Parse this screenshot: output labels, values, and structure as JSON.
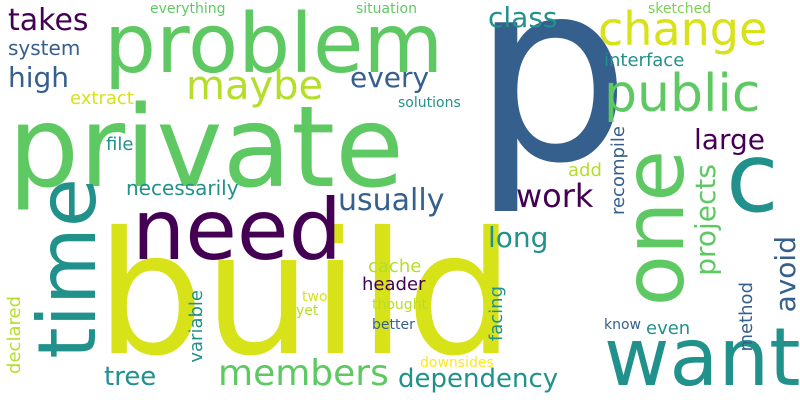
{
  "palette": {
    "dark_purple": "#440154",
    "indigo": "#3b528b",
    "blue": "#355f8d",
    "teal": "#21918c",
    "cyan_teal": "#2a788e",
    "green": "#5ec962",
    "light_green": "#7ad151",
    "yellow_green": "#b5de2b",
    "yellow": "#d8e219",
    "bright_yellow": "#fde725"
  },
  "words": [
    "p",
    "build",
    "private",
    "problem",
    "need",
    "one",
    "time",
    "c",
    "want",
    "change",
    "public",
    "members",
    "maybe",
    "dependency",
    "usually",
    "work",
    "takes",
    "class",
    "every",
    "high",
    "large",
    "long",
    "projects",
    "avoid",
    "system",
    "interface",
    "extract",
    "necessarily",
    "tree",
    "file",
    "cache",
    "header",
    "recompile",
    "add",
    "facing",
    "method",
    "declared",
    "variable",
    "even",
    "everything",
    "situation",
    "sketched",
    "solutions",
    "thought",
    "two",
    "yet",
    "better",
    "know",
    "downsides"
  ]
}
